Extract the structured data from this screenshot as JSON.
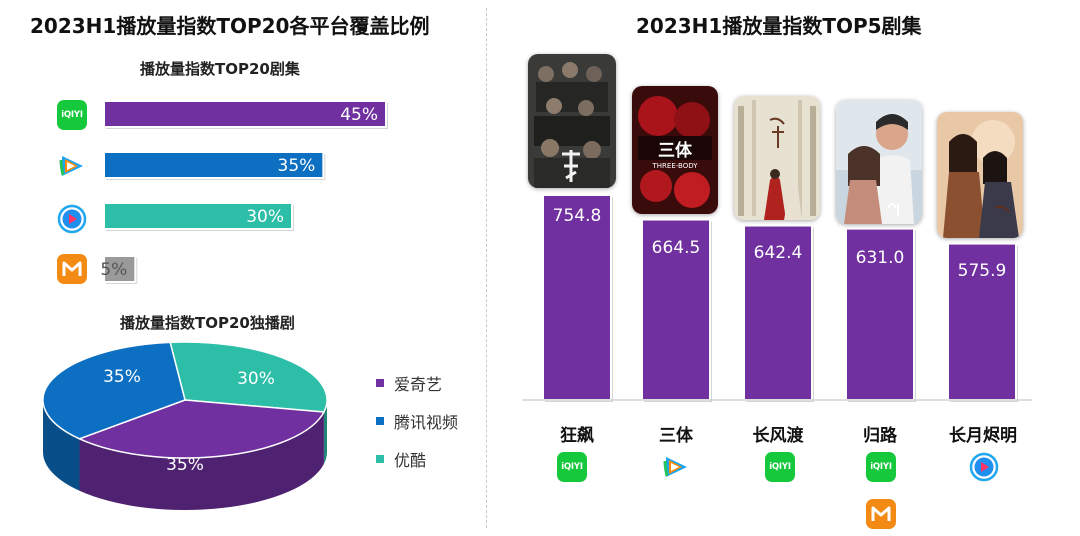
{
  "left": {
    "title": "2023H1播放量指数TOP20各平台覆盖比例",
    "bar_subtitle": "播放量指数TOP20剧集",
    "pie_subtitle": "播放量指数TOP20独播剧"
  },
  "right": {
    "title": "2023H1播放量指数TOP5剧集"
  },
  "colors": {
    "iqiyi_bar": "#7030a0",
    "tencent_bar": "#0c6fc2",
    "youku_bar": "#2dbea8",
    "mango_bar": "#9a9a9a",
    "top5_bar": "#7030a0",
    "iqiyi_logo": "#16c93c",
    "mango_logo": "#f28a14"
  },
  "platform_logos": [
    "iqiyi-logo",
    "tencent-video-logo",
    "youku-logo",
    "mango-tv-logo"
  ],
  "chart_data": [
    {
      "type": "bar",
      "orientation": "horizontal",
      "title": "播放量指数TOP20剧集",
      "categories": [
        "爱奇艺",
        "腾讯视频",
        "优酷",
        "芒果TV"
      ],
      "values": [
        45,
        35,
        30,
        5
      ],
      "labels": [
        "45%",
        "35%",
        "30%",
        "5%"
      ],
      "unit": "%",
      "xlim": [
        0,
        45
      ],
      "grid": false
    },
    {
      "type": "pie",
      "title": "播放量指数TOP20独播剧",
      "style": "3d",
      "categories": [
        "爱奇艺",
        "腾讯视频",
        "优酷"
      ],
      "values": [
        35,
        35,
        30
      ],
      "labels": [
        "35%",
        "35%",
        "30%"
      ],
      "colors": [
        "#7030a0",
        "#0c6fc2",
        "#2dbea8"
      ],
      "legend": {
        "position": "right",
        "items": [
          "爱奇艺",
          "腾讯视频",
          "优酷"
        ]
      }
    },
    {
      "type": "bar",
      "title": "2023H1播放量指数TOP5剧集",
      "categories": [
        "狂飙",
        "三体",
        "长风渡",
        "归路",
        "长月烬明"
      ],
      "values": [
        754.8,
        664.5,
        642.4,
        631.0,
        575.9
      ],
      "labels": [
        "754.8",
        "664.5",
        "642.4",
        "631.0",
        "575.9"
      ],
      "platforms": [
        [
          "爱奇艺"
        ],
        [
          "腾讯视频"
        ],
        [
          "爱奇艺"
        ],
        [
          "爱奇艺",
          "芒果TV"
        ],
        [
          "优酷"
        ]
      ],
      "grid": false
    }
  ],
  "poster_texts": {
    "santi_cn": "三体",
    "santi_en": "THREE-BODY",
    "iqiyi_logo_text": "iQIYI"
  }
}
